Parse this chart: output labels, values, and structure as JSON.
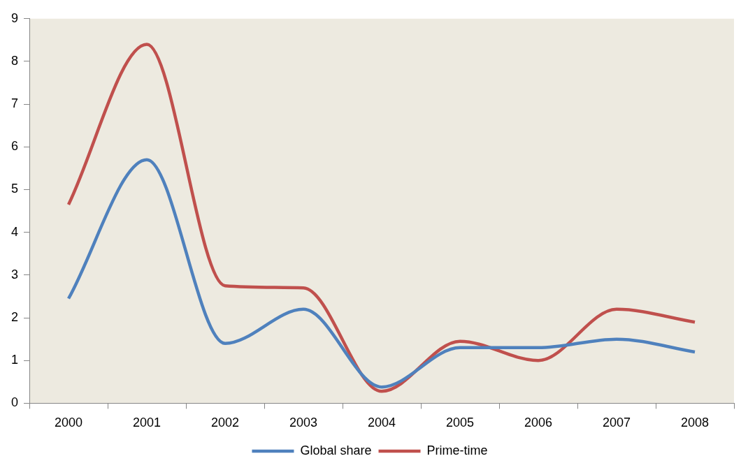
{
  "chart_data": {
    "type": "line",
    "categories": [
      "2000",
      "2001",
      "2002",
      "2003",
      "2004",
      "2005",
      "2006",
      "2007",
      "2008"
    ],
    "series": [
      {
        "name": "Global share",
        "color": "#4f81bd",
        "values": [
          2.45,
          5.7,
          1.4,
          2.2,
          0.38,
          1.3,
          1.3,
          1.5,
          1.2
        ]
      },
      {
        "name": "Prime-time",
        "color": "#c0504d",
        "values": [
          4.65,
          8.4,
          2.75,
          2.7,
          0.28,
          1.45,
          1.0,
          2.2,
          1.9
        ]
      }
    ],
    "ylim": [
      0,
      9
    ],
    "yticks": [
      0,
      1,
      2,
      3,
      4,
      5,
      6,
      7,
      8,
      9
    ],
    "grid": false,
    "legend": "bottom",
    "marker": "none",
    "line_style": "solid"
  }
}
